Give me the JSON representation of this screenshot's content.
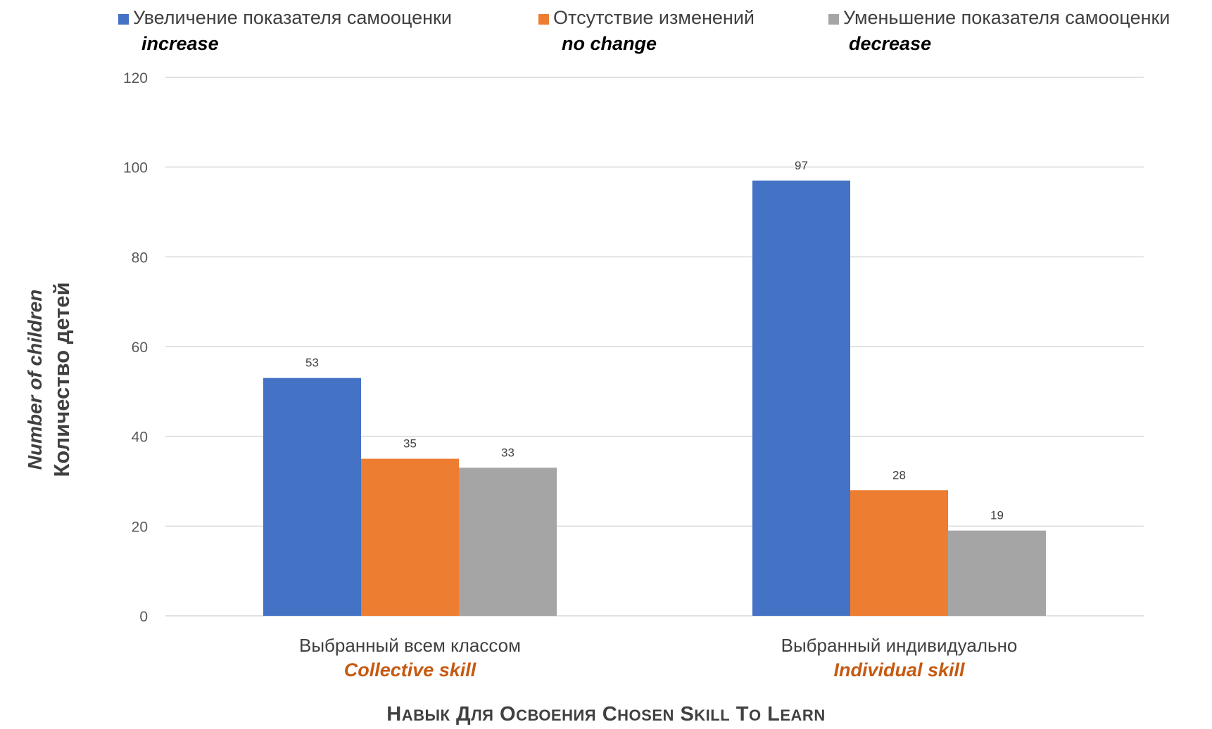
{
  "chart_data": {
    "type": "bar",
    "categories": [
      "Выбранный всем классом",
      "Выбранный индивидуально"
    ],
    "category_subtitles": [
      "Collective skill",
      "Individual skill"
    ],
    "series": [
      {
        "name": "Увеличение показателя самооценки",
        "name_en": "increase",
        "color": "#4472C4",
        "values": [
          53,
          97
        ]
      },
      {
        "name": "Отсутствие изменений",
        "name_en": "no change",
        "color": "#ED7D31",
        "values": [
          35,
          28
        ]
      },
      {
        "name": "Уменьшение показателя самооценки",
        "name_en": "decrease",
        "color": "#A5A5A5",
        "values": [
          33,
          19
        ]
      }
    ],
    "ylabel": "Количество детей",
    "ylabel_en": "Number of children",
    "xlabel": "Навык для освоения Chosen skill to learn",
    "ylim": [
      0,
      120
    ],
    "yticks": [
      0,
      20,
      40,
      60,
      80,
      100,
      120
    ],
    "grid": true,
    "legend_position": "top",
    "subtitle_color": "#C55A11"
  }
}
